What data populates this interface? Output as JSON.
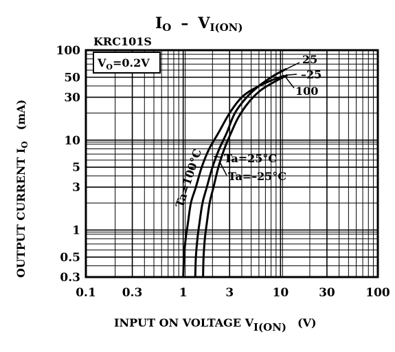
{
  "chart_data": {
    "type": "line",
    "title": "I",
    "title_sub": "O",
    "title_sep": "–",
    "title_right": "V",
    "title_right_sub": "I(ON)",
    "device": "KRC101S",
    "condition_main": "V",
    "condition_sub": "O",
    "condition_value": "=0.2V",
    "ylabel": "OUTPUT CURRENT I",
    "ylabel_sub": "O",
    "ylabel_unit": "(mA)",
    "xlabel": "INPUT ON VOLTAGE V",
    "xlabel_sub": "I(ON)",
    "xlabel_unit": "(V)",
    "x_scale": "log",
    "y_scale": "log",
    "xlim": [
      0.1,
      100
    ],
    "ylim": [
      0.3,
      100
    ],
    "x_ticks": [
      0.1,
      0.3,
      1,
      3,
      10,
      30,
      100
    ],
    "x_tick_labels": [
      "0.1",
      "0.3",
      "1",
      "3",
      "10",
      "30",
      "100"
    ],
    "y_ticks": [
      0.3,
      0.5,
      1,
      3,
      5,
      10,
      30,
      50,
      100
    ],
    "y_tick_labels": [
      "0.3",
      "0.5",
      "1",
      "3",
      "5",
      "10",
      "30",
      "50",
      "100"
    ],
    "grid": true,
    "series": [
      {
        "name": "Ta=100°C",
        "end_label": "100",
        "x": [
          1.0,
          1.02,
          1.06,
          1.12,
          1.2,
          1.35,
          1.55,
          1.85,
          2.3,
          3.0,
          4.0,
          5.5,
          8.0,
          11.0
        ],
        "y": [
          0.3,
          0.5,
          0.8,
          1.2,
          2.0,
          3.0,
          5.0,
          8.0,
          12.0,
          20.0,
          30.0,
          38.0,
          46.0,
          52.0
        ]
      },
      {
        "name": "Ta=25°C",
        "end_label": "25",
        "x": [
          1.33,
          1.35,
          1.4,
          1.47,
          1.58,
          1.75,
          2.0,
          2.35,
          2.8,
          3.4,
          4.5,
          6.0,
          8.5,
          11.5
        ],
        "y": [
          0.3,
          0.5,
          0.8,
          1.2,
          2.0,
          3.0,
          5.0,
          8.0,
          12.0,
          20.0,
          30.0,
          40.0,
          52.0,
          62.0
        ]
      },
      {
        "name": "Ta=-25°C",
        "end_label": "-25",
        "x": [
          1.6,
          1.62,
          1.67,
          1.75,
          1.87,
          2.05,
          2.3,
          2.65,
          3.1,
          3.7,
          4.8,
          6.3,
          8.8,
          11.8
        ],
        "y": [
          0.3,
          0.5,
          0.8,
          1.2,
          2.0,
          3.0,
          5.0,
          8.0,
          12.0,
          18.0,
          27.0,
          36.0,
          45.0,
          53.0
        ]
      }
    ]
  }
}
